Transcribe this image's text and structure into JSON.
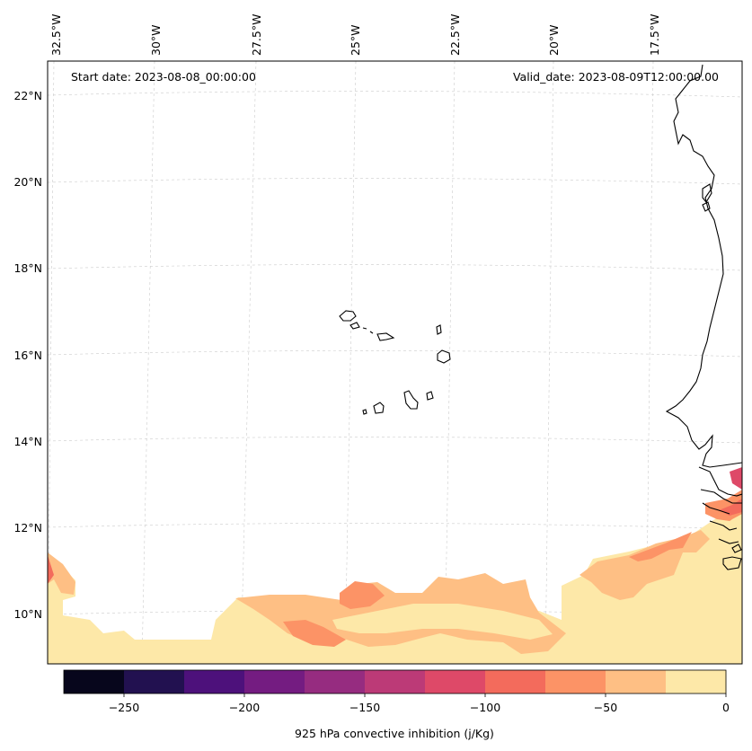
{
  "header": {
    "start_date": "Start date: 2023-08-08_00:00:00",
    "valid_date": "Valid_date: 2023-08-09T12:00:00.00"
  },
  "map": {
    "lon_labels": [
      "32.5°W",
      "30°W",
      "27.5°W",
      "25°W",
      "22.5°W",
      "20°W",
      "17.5°W"
    ],
    "lat_labels": [
      "22°N",
      "20°N",
      "18°N",
      "16°N",
      "14°N",
      "12°N",
      "10°N"
    ],
    "field": "925 hPa convective inhibition"
  },
  "colorbar": {
    "title": "925 hPa convective inhibition (j/Kg)",
    "tick_labels": [
      "−250",
      "−200",
      "−150",
      "−100",
      "−50",
      "0"
    ],
    "levels": [
      -275,
      -250,
      -225,
      -200,
      -175,
      -150,
      -125,
      -100,
      -75,
      -50,
      -25,
      0
    ],
    "colors": [
      "#07061c",
      "#221150",
      "#4d117b",
      "#741c81",
      "#962c80",
      "#bc3a77",
      "#de4968",
      "#f36b5c",
      "#fc9366",
      "#febf84",
      "#fde8a8"
    ]
  }
}
